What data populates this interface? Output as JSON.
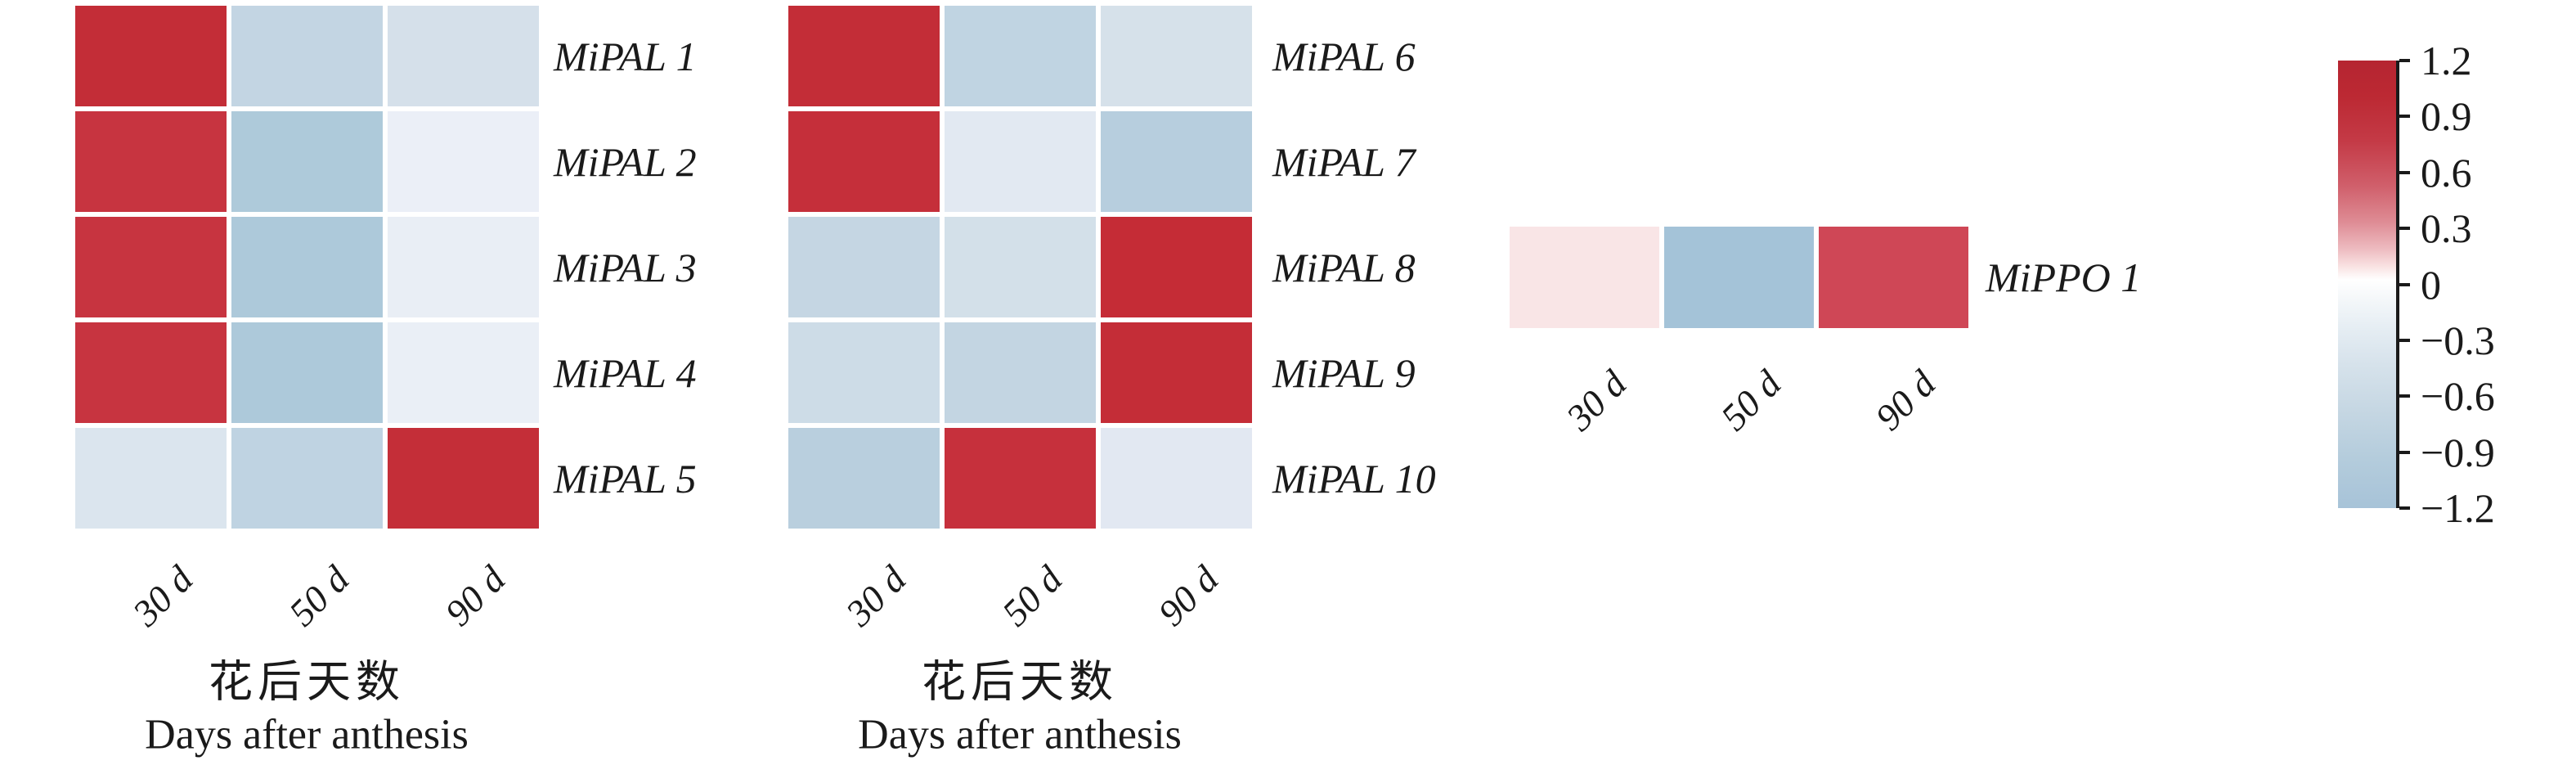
{
  "figure": {
    "background": "#ffffff",
    "text_color": "#1a1a1a"
  },
  "chart_data": [
    {
      "type": "heatmap",
      "x_tick_labels": [
        "30 d",
        "50 d",
        "90 d"
      ],
      "rows": [
        "MiPAL 1",
        "MiPAL 2",
        "MiPAL 3",
        "MiPAL 4",
        "MiPAL 5"
      ],
      "xlabel_zh": "花后天数",
      "xlabel_en": "Days after anthesis",
      "value_range": [
        -1.2,
        1.2
      ],
      "values": [
        [
          1.15,
          -0.8,
          -0.55
        ],
        [
          1.05,
          -1.1,
          -0.25
        ],
        [
          1.05,
          -1.1,
          -0.25
        ],
        [
          1.05,
          -1.1,
          -0.25
        ],
        [
          -0.45,
          -0.85,
          1.15
        ]
      ],
      "cell_colors": [
        [
          "#c32d37",
          "#c3d5e3",
          "#d5e0ea"
        ],
        [
          "#c73440",
          "#aecada",
          "#ebeff7"
        ],
        [
          "#c73440",
          "#adc9da",
          "#e9eef5"
        ],
        [
          "#c73440",
          "#adc9da",
          "#eaeff6"
        ],
        [
          "#dbe5ee",
          "#bfd3e2",
          "#c42e38"
        ]
      ]
    },
    {
      "type": "heatmap",
      "x_tick_labels": [
        "30 d",
        "50 d",
        "90 d"
      ],
      "rows": [
        "MiPAL 6",
        "MiPAL 7",
        "MiPAL 8",
        "MiPAL 9",
        "MiPAL 10"
      ],
      "xlabel_zh": "花后天数",
      "xlabel_en": "Days after anthesis",
      "value_range": [
        -1.2,
        1.2
      ],
      "values": [
        [
          1.15,
          -0.8,
          -0.55
        ],
        [
          1.05,
          -0.35,
          -0.95
        ],
        [
          -0.75,
          -0.55,
          1.15
        ],
        [
          -0.65,
          -0.8,
          1.15
        ],
        [
          -0.95,
          1.05,
          -0.35
        ]
      ],
      "cell_colors": [
        [
          "#c32d37",
          "#c0d4e2",
          "#d6e1ea"
        ],
        [
          "#c52f3a",
          "#e2e9f2",
          "#b7cede"
        ],
        [
          "#c5d6e3",
          "#d3e0e9",
          "#c52c36"
        ],
        [
          "#cddce7",
          "#c3d5e2",
          "#c42d37"
        ],
        [
          "#b9cfde",
          "#c6303c",
          "#e2e8f2"
        ]
      ]
    },
    {
      "type": "heatmap",
      "x_tick_labels": [
        "30 d",
        "50 d",
        "90 d"
      ],
      "rows": [
        "MiPPO 1"
      ],
      "value_range": [
        -1.2,
        1.2
      ],
      "values": [
        [
          0.15,
          -1.2,
          0.85
        ]
      ],
      "cell_colors": [
        [
          "#f9e5e6",
          "#a4c3d8",
          "#cf4756"
        ]
      ]
    },
    {
      "type": "colorbar",
      "min": -1.2,
      "max": 1.2,
      "tick_labels": [
        "1.2",
        "0.9",
        "0.6",
        "0.3",
        "0",
        "−0.3",
        "−0.6",
        "−0.9",
        "−1.2"
      ],
      "top_color": "#b52531",
      "mid_color": "#ffffff",
      "bottom_color": "#a7c3d8"
    }
  ]
}
